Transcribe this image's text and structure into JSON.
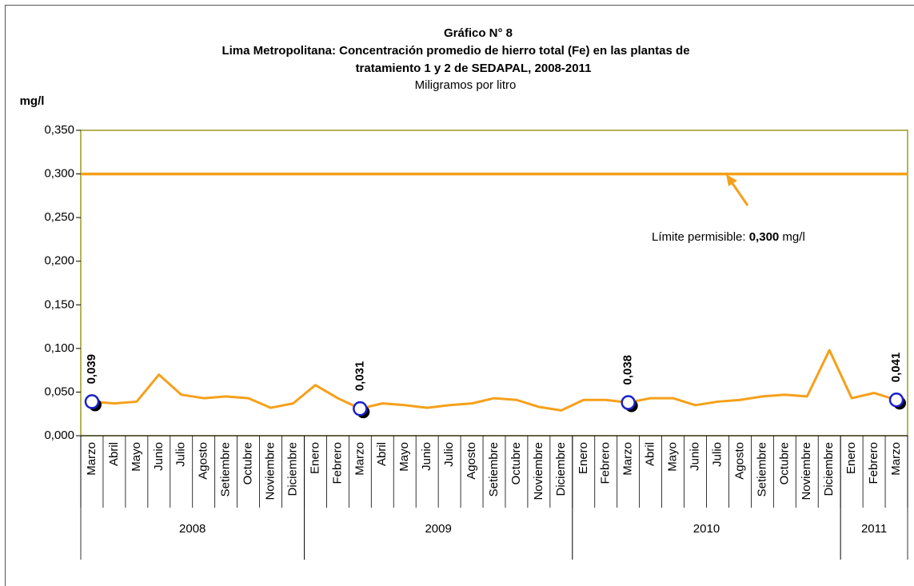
{
  "chart_data": {
    "type": "line",
    "title": [
      "Gráfico N° 8",
      "Lima Metropolitana: Concentración promedio de hierro total (Fe) en las plantas de",
      "tratamiento 1 y 2 de SEDAPAL, 2008-2011"
    ],
    "subtitle": "Miligramos por litro",
    "y_label": "mg/l",
    "categories": [
      "Marzo",
      "Abril",
      "Mayo",
      "Junio",
      "Julio",
      "Agosto",
      "Setiembre",
      "Octubre",
      "Noviembre",
      "Diciembre",
      "Enero",
      "Febrero",
      "Marzo",
      "Abril",
      "Mayo",
      "Junio",
      "Julio",
      "Agosto",
      "Setiembre",
      "Octubre",
      "Noviembre",
      "Diciembre",
      "Enero",
      "Febrero",
      "Marzo",
      "Abril",
      "Mayo",
      "Junio",
      "Julio",
      "Agosto",
      "Setiembre",
      "Octubre",
      "Noviembre",
      "Diciembre",
      "Enero",
      "Febrero",
      "Marzo"
    ],
    "category_groups": [
      {
        "label": "2008",
        "size": 10
      },
      {
        "label": "2009",
        "size": 12
      },
      {
        "label": "2010",
        "size": 12
      },
      {
        "label": "2011",
        "size": 3
      }
    ],
    "series": [
      {
        "color": "#f5a01a",
        "values": [
          0.039,
          0.037,
          0.039,
          0.07,
          0.047,
          0.043,
          0.045,
          0.043,
          0.032,
          0.037,
          0.058,
          0.043,
          0.031,
          0.037,
          0.035,
          0.032,
          0.035,
          0.037,
          0.043,
          0.041,
          0.033,
          0.029,
          0.041,
          0.041,
          0.038,
          0.043,
          0.043,
          0.035,
          0.039,
          0.041,
          0.045,
          0.047,
          0.045,
          0.098,
          0.043,
          0.049,
          0.041
        ],
        "value_labels": [
          "0,039",
          null,
          null,
          null,
          null,
          null,
          null,
          null,
          null,
          null,
          null,
          null,
          "0,031",
          null,
          null,
          null,
          null,
          null,
          null,
          null,
          null,
          null,
          null,
          null,
          "0,038",
          null,
          null,
          null,
          null,
          null,
          null,
          null,
          null,
          null,
          null,
          null,
          "0,041"
        ]
      }
    ],
    "reference_line": {
      "value": 0.3,
      "color": "#f5a01a",
      "text": [
        "Límite permisible: ",
        "0,300",
        " mg/l"
      ]
    },
    "ylim": [
      0,
      0.35
    ],
    "yticks": [
      {
        "value": 0,
        "label": "0,000"
      },
      {
        "value": 0.05,
        "label": "0,050"
      },
      {
        "value": 0.1,
        "label": "0,100"
      },
      {
        "value": 0.15,
        "label": "0,150"
      },
      {
        "value": 0.2,
        "label": "0,200"
      },
      {
        "value": 0.25,
        "label": "0,250"
      },
      {
        "value": 0.3,
        "label": "0,300"
      },
      {
        "value": 0.35,
        "label": "0,350"
      }
    ]
  }
}
